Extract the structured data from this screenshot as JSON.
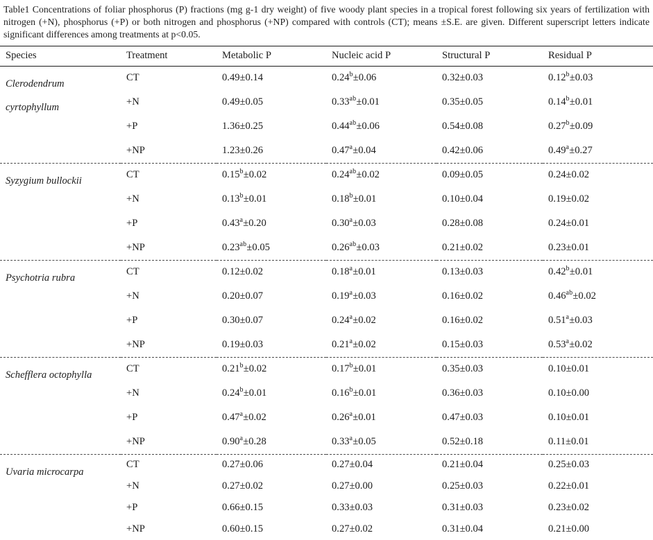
{
  "caption": "Table1 Concentrations of foliar phosphorus (P) fractions (mg g-1 dry weight) of five woody plant species in a tropical forest following six years of fertilization with nitrogen (+N), phosphorus (+P) or both nitrogen and phosphorus (+NP) compared with controls (CT); means ±S.E. are given. Different superscript letters indicate significant differences among treatments at p<0.05.",
  "table": {
    "columns": [
      "Species",
      "Treatment",
      "Metabolic P",
      "Nucleic acid P",
      "Structural P",
      "Residual P"
    ],
    "superscript_note": "values use ^sup^ delimiters for superscript significance letters",
    "groups": [
      {
        "species": "Clerodendrum cyrtophyllum",
        "rows": [
          {
            "treatment": "CT",
            "values": [
              "0.49±0.14",
              "0.24^b^±0.06",
              "0.32±0.03",
              "0.12^b^±0.03"
            ]
          },
          {
            "treatment": "+N",
            "values": [
              "0.49±0.05",
              "0.33^ab^±0.01",
              "0.35±0.05",
              "0.14^b^±0.01"
            ]
          },
          {
            "treatment": "+P",
            "values": [
              "1.36±0.25",
              "0.44^ab^±0.06",
              "0.54±0.08",
              "0.27^b^±0.09"
            ]
          },
          {
            "treatment": "+NP",
            "values": [
              "1.23±0.26",
              "0.47^a^±0.04",
              "0.42±0.06",
              "0.49^a^±0.27"
            ]
          }
        ]
      },
      {
        "species": "Syzygium bullockii",
        "rows": [
          {
            "treatment": "CT",
            "values": [
              "0.15^b^±0.02",
              "0.24^ab^±0.02",
              "0.09±0.05",
              "0.24±0.02"
            ]
          },
          {
            "treatment": "+N",
            "values": [
              "0.13^b^±0.01",
              "0.18^b^±0.01",
              "0.10±0.04",
              "0.19±0.02"
            ]
          },
          {
            "treatment": "+P",
            "values": [
              "0.43^a^±0.20",
              "0.30^a^±0.03",
              "0.28±0.08",
              "0.24±0.01"
            ]
          },
          {
            "treatment": "+NP",
            "values": [
              "0.23^ab^±0.05",
              "0.26^ab^±0.03",
              "0.21±0.02",
              "0.23±0.01"
            ]
          }
        ]
      },
      {
        "species": "Psychotria rubra",
        "rows": [
          {
            "treatment": "CT",
            "values": [
              "0.12±0.02",
              "0.18^a^±0.01",
              "0.13±0.03",
              "0.42^b^±0.01"
            ]
          },
          {
            "treatment": "+N",
            "values": [
              "0.20±0.07",
              "0.19^a^±0.03",
              "0.16±0.02",
              "0.46^ab^±0.02"
            ]
          },
          {
            "treatment": "+P",
            "values": [
              "0.30±0.07",
              "0.24^a^±0.02",
              "0.16±0.02",
              "0.51^a^±0.03"
            ]
          },
          {
            "treatment": "+NP",
            "values": [
              "0.19±0.03",
              "0.21^a^±0.02",
              "0.15±0.03",
              "0.53^a^±0.02"
            ]
          }
        ]
      },
      {
        "species": "Schefflera octophylla",
        "rows": [
          {
            "treatment": "CT",
            "values": [
              "0.21^b^±0.02",
              "0.17^b^±0.01",
              "0.35±0.03",
              "0.10±0.01"
            ]
          },
          {
            "treatment": "+N",
            "values": [
              "0.24^b^±0.01",
              "0.16^b^±0.01",
              "0.36±0.03",
              "0.10±0.00"
            ]
          },
          {
            "treatment": "+P",
            "values": [
              "0.47^a^±0.02",
              "0.26^a^±0.01",
              "0.47±0.03",
              "0.10±0.01"
            ]
          },
          {
            "treatment": "+NP",
            "values": [
              "0.90^a^±0.28",
              "0.33^a^±0.05",
              "0.52±0.18",
              "0.11±0.01"
            ]
          }
        ]
      },
      {
        "species": "Uvaria microcarpa",
        "rows": [
          {
            "treatment": "CT",
            "values": [
              "0.27±0.06",
              "0.27±0.04",
              "0.21±0.04",
              "0.25±0.03"
            ]
          },
          {
            "treatment": "+N",
            "values": [
              "0.27±0.02",
              "0.27±0.00",
              "0.25±0.03",
              "0.22±0.01"
            ]
          },
          {
            "treatment": "+P",
            "values": [
              "0.66±0.15",
              "0.33±0.03",
              "0.31±0.03",
              "0.23±0.02"
            ]
          },
          {
            "treatment": "+NP",
            "values": [
              "0.60±0.15",
              "0.27±0.02",
              "0.31±0.04",
              "0.21±0.00"
            ]
          }
        ]
      }
    ]
  }
}
